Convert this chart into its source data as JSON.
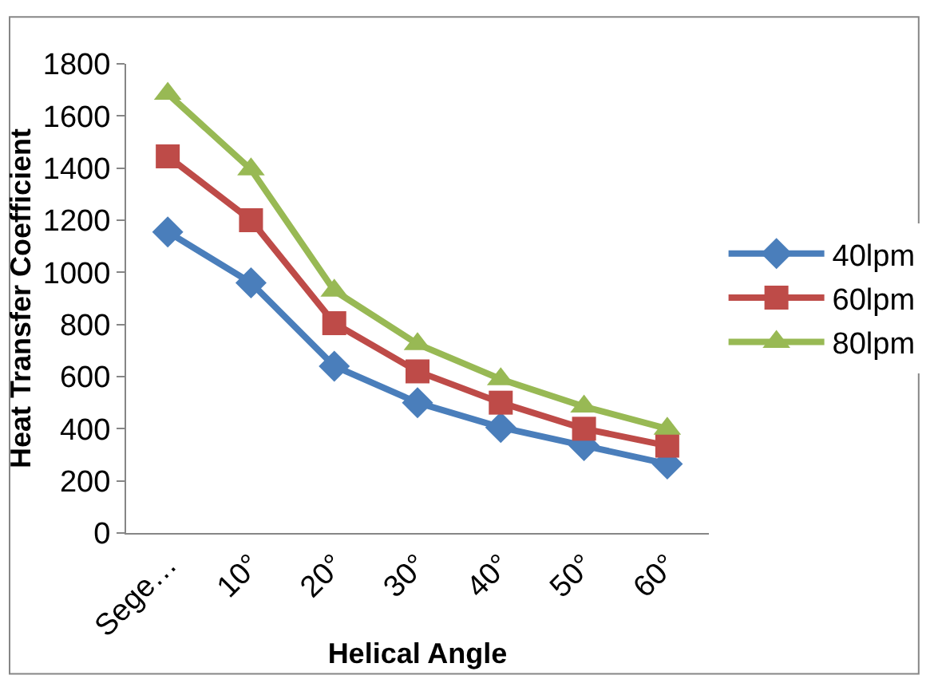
{
  "chart_data": {
    "type": "line",
    "xlabel": "Helical Angle",
    "ylabel": "Heat Transfer Coefficient",
    "categories": [
      "Sege…",
      "10°",
      "20°",
      "30°",
      "40°",
      "50°",
      "60°"
    ],
    "series": [
      {
        "name": "40lpm",
        "color": "#4a7ebb",
        "marker": "diamond",
        "values": [
          1155,
          960,
          640,
          500,
          405,
          335,
          265
        ]
      },
      {
        "name": "60lpm",
        "color": "#be4b48",
        "marker": "square",
        "values": [
          1445,
          1200,
          805,
          620,
          500,
          400,
          335
        ]
      },
      {
        "name": "80lpm",
        "color": "#98b954",
        "marker": "triangle",
        "values": [
          1685,
          1395,
          930,
          725,
          590,
          485,
          400
        ]
      }
    ],
    "ylim": [
      0,
      1800
    ],
    "yticks": [
      0,
      200,
      400,
      600,
      800,
      1000,
      1200,
      1400,
      1600,
      1800
    ],
    "legend": "right",
    "line_style": "solid"
  }
}
